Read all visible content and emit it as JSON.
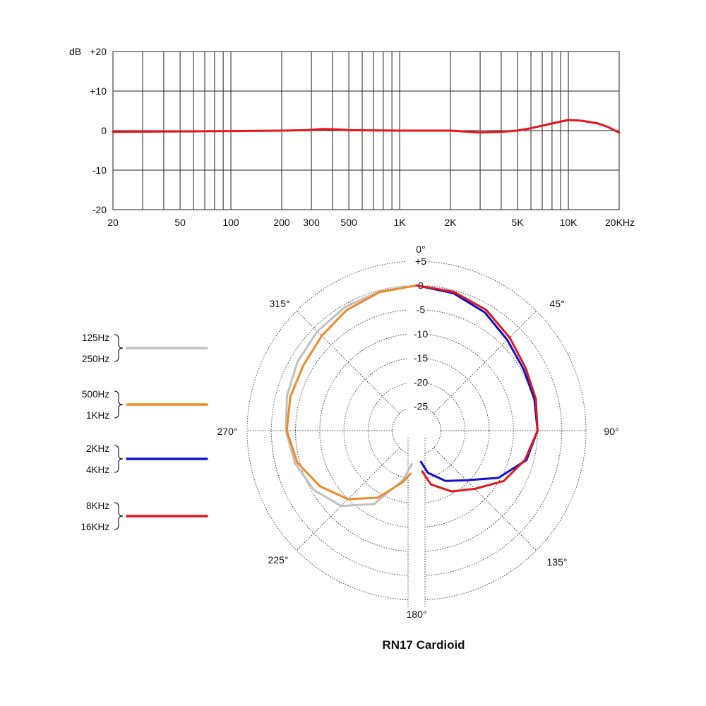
{
  "chart_data": [
    {
      "type": "line",
      "ylabel": "dB",
      "xscale": "log",
      "xlim": [
        20,
        20000
      ],
      "ylim": [
        -20,
        20
      ],
      "grid": true,
      "y_ticks": [
        {
          "value": 20,
          "label": "+20"
        },
        {
          "value": 10,
          "label": "+10"
        },
        {
          "value": 0,
          "label": "0"
        },
        {
          "value": -10,
          "label": "-10"
        },
        {
          "value": -20,
          "label": "-20"
        }
      ],
      "x_ticks": [
        {
          "value": 20,
          "label": "20"
        },
        {
          "value": 50,
          "label": "50"
        },
        {
          "value": 100,
          "label": "100"
        },
        {
          "value": 200,
          "label": "200"
        },
        {
          "value": 300,
          "label": "300"
        },
        {
          "value": 500,
          "label": "500"
        },
        {
          "value": 1000,
          "label": "1K"
        },
        {
          "value": 2000,
          "label": "2K"
        },
        {
          "value": 5000,
          "label": "5K"
        },
        {
          "value": 10000,
          "label": "10K"
        },
        {
          "value": 20000,
          "label": "20KHz"
        }
      ],
      "series": [
        {
          "color": "#e8141c",
          "x": [
            20,
            50,
            100,
            200,
            280,
            350,
            420,
            500,
            1000,
            2000,
            3000,
            4000,
            5000,
            6000,
            8000,
            10000,
            12000,
            15000,
            17000,
            20000
          ],
          "y": [
            -0.3,
            -0.2,
            -0.1,
            0.0,
            0.1,
            0.4,
            0.3,
            0.1,
            0.0,
            0.0,
            -0.5,
            -0.3,
            0.0,
            0.6,
            1.8,
            2.7,
            2.5,
            1.8,
            1.0,
            -0.5
          ]
        }
      ]
    },
    {
      "type": "polar",
      "title": "RN17 Cardioid",
      "radial_range": [
        -30,
        5
      ],
      "radial_ticks": [
        {
          "value": 5,
          "label": "+5"
        },
        {
          "value": 0,
          "label": "0"
        },
        {
          "value": -5,
          "label": "-5"
        },
        {
          "value": -10,
          "label": "-10"
        },
        {
          "value": -15,
          "label": "-15"
        },
        {
          "value": -20,
          "label": "-20"
        },
        {
          "value": -25,
          "label": "-25"
        }
      ],
      "angle_labels": [
        {
          "angle": 0,
          "label": "0°"
        },
        {
          "angle": 45,
          "label": "45°"
        },
        {
          "angle": 90,
          "label": "90°"
        },
        {
          "angle": 135,
          "label": "135°"
        },
        {
          "angle": 180,
          "label": "180°"
        },
        {
          "angle": 225,
          "label": "225°"
        },
        {
          "angle": 270,
          "label": "270°"
        },
        {
          "angle": 315,
          "label": "315°"
        }
      ],
      "series": [
        {
          "name": "125Hz / 250Hz",
          "color": "#c0c0c0",
          "side": "left",
          "angles": [
            0,
            15,
            30,
            45,
            60,
            75,
            90,
            105,
            120,
            135,
            150,
            165,
            172
          ],
          "values": [
            0,
            -0.2,
            -0.5,
            -1.0,
            -1.6,
            -2.3,
            -3.0,
            -4.0,
            -5.5,
            -8.0,
            -12.5,
            -19.5,
            -23.0
          ]
        },
        {
          "name": "500Hz / 1KHz",
          "color": "#f08a24",
          "side": "left",
          "angles": [
            0,
            15,
            30,
            45,
            60,
            75,
            90,
            105,
            120,
            135,
            150,
            165,
            172
          ],
          "values": [
            0,
            -0.4,
            -1.2,
            -2.3,
            -3.0,
            -3.0,
            -3.2,
            -4.5,
            -7.0,
            -10.0,
            -14.0,
            -19.0,
            -21.0
          ]
        },
        {
          "name": "2KHz / 4KHz",
          "color": "#1010d0",
          "side": "right",
          "angles": [
            0,
            15,
            30,
            45,
            60,
            75,
            90,
            105,
            120,
            135,
            150,
            165,
            172
          ],
          "values": [
            0,
            -0.6,
            -1.8,
            -3.5,
            -4.5,
            -4.8,
            -5.0,
            -6.5,
            -10.5,
            -15.5,
            -18.0,
            -21.0,
            -23.5
          ]
        },
        {
          "name": "8KHz / 16KHz",
          "color": "#e01818",
          "side": "right",
          "angles": [
            0,
            15,
            30,
            45,
            60,
            75,
            90,
            105,
            120,
            135,
            150,
            165,
            172
          ],
          "values": [
            0,
            -0.3,
            -1.2,
            -2.8,
            -4.0,
            -4.5,
            -5.0,
            -6.8,
            -9.2,
            -13.0,
            -15.5,
            -18.5,
            -21.5
          ]
        }
      ]
    }
  ],
  "legend": [
    {
      "top": "125Hz",
      "bottom": "250Hz",
      "color": "#c0c0c0"
    },
    {
      "top": "500Hz",
      "bottom": "1KHz",
      "color": "#f08a24"
    },
    {
      "top": "2KHz",
      "bottom": "4KHz",
      "color": "#1010d0"
    },
    {
      "top": "8KHz",
      "bottom": "16KHz",
      "color": "#e01818"
    }
  ]
}
